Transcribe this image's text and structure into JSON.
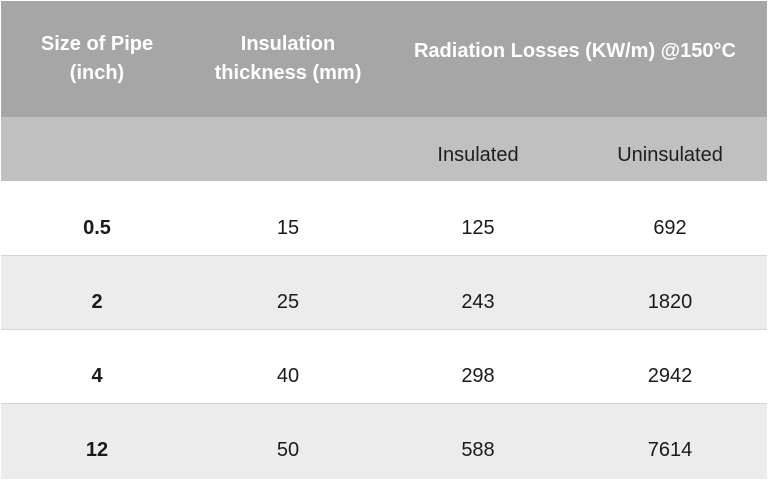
{
  "table": {
    "header": {
      "size_line1": "Size of Pipe",
      "size_line2": "(inch)",
      "insulation_line1": "Insulation",
      "insulation_line2": "thickness (mm)",
      "radiation_title": "Radiation Losses (KW/m) @150°C",
      "insulated": "Insulated",
      "uninsulated": "Uninsulated"
    },
    "rows": [
      {
        "size": "0.5",
        "thickness": "15",
        "insulated": "125",
        "uninsulated": "692"
      },
      {
        "size": "2",
        "thickness": "25",
        "insulated": "243",
        "uninsulated": "1820"
      },
      {
        "size": "4",
        "thickness": "40",
        "insulated": "298",
        "uninsulated": "2942"
      },
      {
        "size": "12",
        "thickness": "50",
        "insulated": "588",
        "uninsulated": "7614"
      }
    ],
    "colors": {
      "header_primary": "#a6a6a6",
      "header_secondary": "#c0c0c0",
      "row_alt": "#ececec",
      "row_white": "#ffffff"
    }
  }
}
